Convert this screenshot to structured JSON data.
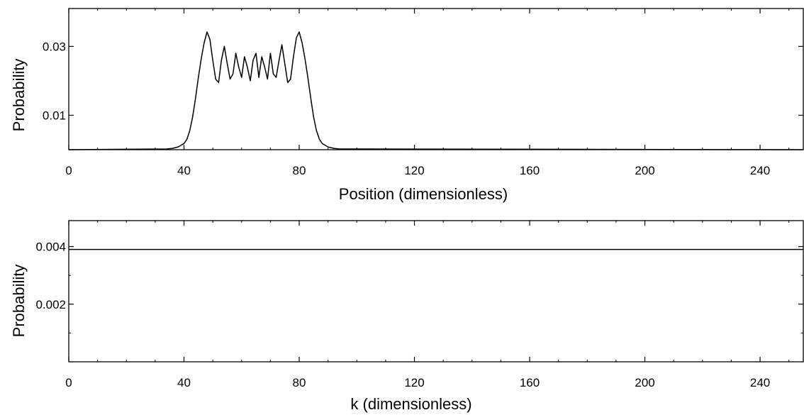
{
  "chart_data": [
    {
      "type": "line",
      "xlabel": "Position (dimensionless)",
      "ylabel": "Probability",
      "xlim": [
        0,
        255
      ],
      "ylim": [
        0,
        0.041
      ],
      "xticks": [
        0,
        40,
        80,
        120,
        160,
        200,
        240
      ],
      "xtick_labels": [
        "0",
        "40",
        "80",
        "120",
        "160",
        "200",
        "240"
      ],
      "yticks": [
        0.01,
        0.03
      ],
      "ytick_labels": [
        "0.01",
        "0.03"
      ],
      "grid": false,
      "series": [
        {
          "color": "#000000",
          "x": [
            0,
            34,
            36,
            38,
            40,
            41,
            42,
            43,
            44,
            45,
            46,
            47,
            48,
            49,
            50,
            51,
            52,
            53,
            54,
            55,
            56,
            57,
            58,
            59,
            60,
            61,
            62,
            63,
            64,
            65,
            66,
            67,
            68,
            69,
            70,
            71,
            72,
            73,
            74,
            75,
            76,
            77,
            78,
            79,
            80,
            81,
            82,
            83,
            84,
            85,
            86,
            87,
            88,
            90,
            92,
            94,
            255
          ],
          "y": [
            0,
            0.0002,
            0.0004,
            0.0008,
            0.0018,
            0.003,
            0.0055,
            0.0095,
            0.015,
            0.021,
            0.0265,
            0.031,
            0.0342,
            0.032,
            0.026,
            0.0205,
            0.0195,
            0.026,
            0.03,
            0.025,
            0.0205,
            0.022,
            0.028,
            0.024,
            0.021,
            0.027,
            0.024,
            0.02,
            0.026,
            0.028,
            0.021,
            0.027,
            0.024,
            0.0205,
            0.028,
            0.022,
            0.021,
            0.026,
            0.0305,
            0.025,
            0.0195,
            0.0205,
            0.027,
            0.0325,
            0.0342,
            0.031,
            0.0265,
            0.021,
            0.015,
            0.0095,
            0.0055,
            0.003,
            0.0018,
            0.0008,
            0.0004,
            0.0002,
            0
          ]
        }
      ]
    },
    {
      "type": "line",
      "xlabel": "k (dimensionless)",
      "ylabel": "Probability",
      "xlim": [
        0,
        255
      ],
      "ylim": [
        0,
        0.0049
      ],
      "xticks": [
        0,
        40,
        80,
        120,
        160,
        200,
        240
      ],
      "xtick_labels": [
        "0",
        "40",
        "80",
        "120",
        "160",
        "200",
        "240"
      ],
      "yticks": [
        0.002,
        0.004
      ],
      "ytick_labels": [
        "0.002",
        "0.004"
      ],
      "grid": false,
      "series": [
        {
          "color": "#000000",
          "x": [
            0,
            255
          ],
          "y": [
            0.0039,
            0.0039
          ]
        }
      ]
    }
  ]
}
